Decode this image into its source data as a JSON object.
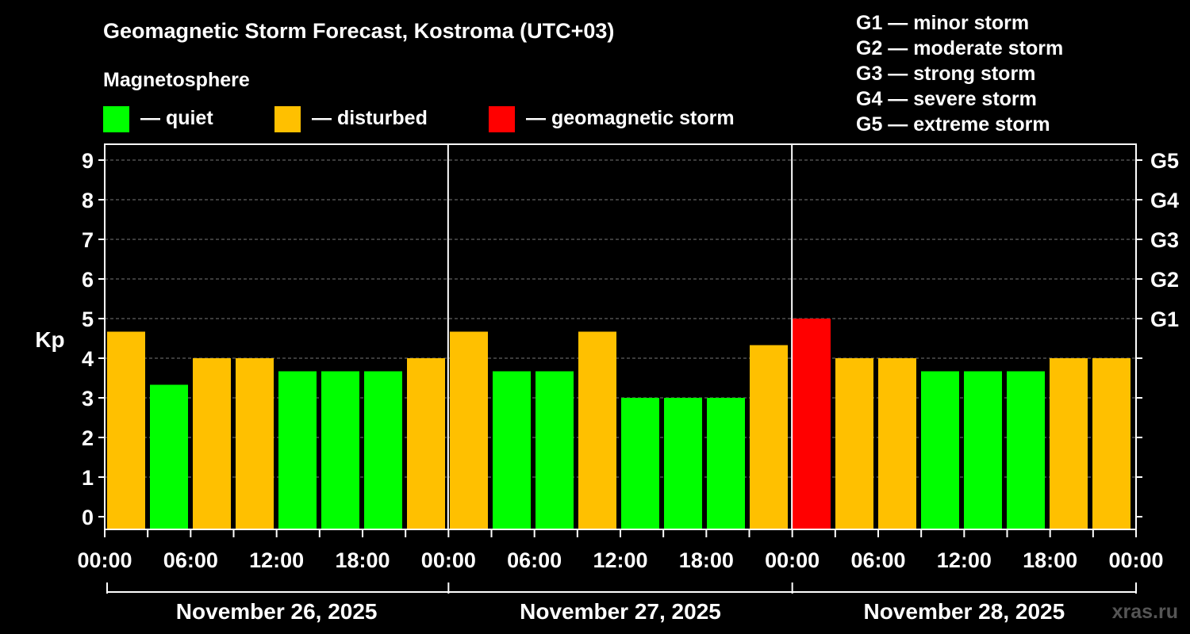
{
  "title": "Geomagnetic Storm Forecast, Kostroma (UTC+03)",
  "legend": {
    "heading": "Magnetosphere",
    "items": [
      {
        "label": "— quiet",
        "color": "#00ff00"
      },
      {
        "label": "— disturbed",
        "color": "#ffc000"
      },
      {
        "label": "— geomagnetic storm",
        "color": "#ff0000"
      }
    ]
  },
  "storm_scale": [
    "G1 — minor storm",
    "G2 — moderate storm",
    "G3 — strong storm",
    "G4 — severe storm",
    "G5 — extreme storm"
  ],
  "watermark": "xras.ru",
  "chart_data": {
    "type": "bar",
    "ylabel": "Kp",
    "ylim": [
      0,
      9
    ],
    "y_ticks": [
      "0",
      "1",
      "2",
      "3",
      "4",
      "5",
      "6",
      "7",
      "8",
      "9"
    ],
    "g_ticks": [
      {
        "kp": 5,
        "label": "G1"
      },
      {
        "kp": 6,
        "label": "G2"
      },
      {
        "kp": 7,
        "label": "G3"
      },
      {
        "kp": 8,
        "label": "G4"
      },
      {
        "kp": 9,
        "label": "G5"
      }
    ],
    "grid": "dashed horizontal",
    "days": [
      {
        "label": "November 26, 2025",
        "x_ticks": [
          "00:00",
          "06:00",
          "12:00",
          "18:00"
        ],
        "values": [
          4.67,
          3.33,
          4.0,
          4.0,
          3.67,
          3.67,
          3.67,
          4.0
        ],
        "levels": [
          "disturbed",
          "quiet",
          "disturbed",
          "disturbed",
          "quiet",
          "quiet",
          "quiet",
          "disturbed"
        ]
      },
      {
        "label": "November 27, 2025",
        "x_ticks": [
          "00:00",
          "06:00",
          "12:00",
          "18:00"
        ],
        "values": [
          4.67,
          3.67,
          3.67,
          4.67,
          3.0,
          3.0,
          3.0,
          4.33
        ],
        "levels": [
          "disturbed",
          "quiet",
          "quiet",
          "disturbed",
          "quiet",
          "quiet",
          "quiet",
          "disturbed"
        ]
      },
      {
        "label": "November 28, 2025",
        "x_ticks": [
          "00:00",
          "06:00",
          "12:00",
          "18:00",
          "00:00"
        ],
        "values": [
          5.0,
          4.0,
          4.0,
          3.67,
          3.67,
          3.67,
          4.0,
          4.0
        ],
        "levels": [
          "storm",
          "disturbed",
          "disturbed",
          "quiet",
          "quiet",
          "quiet",
          "disturbed",
          "disturbed"
        ]
      }
    ]
  }
}
